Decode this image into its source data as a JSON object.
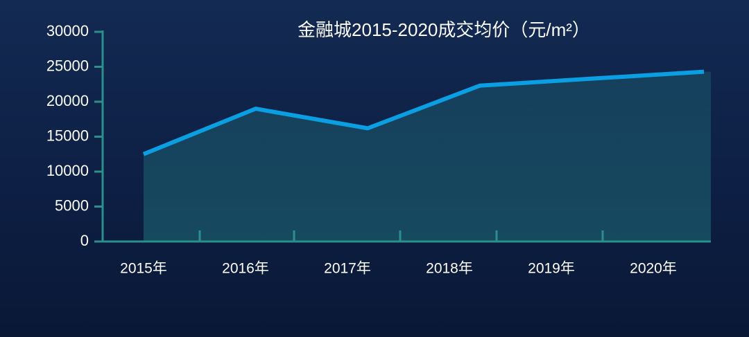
{
  "chart_data": {
    "type": "line",
    "title": "金融城2015-2020成交均价（元/m²）",
    "categories": [
      "2015年",
      "2016年",
      "2017年",
      "2018年",
      "2019年",
      "2020年"
    ],
    "series": [
      {
        "color": "#0a9fe2",
        "values": [
          12500,
          19000,
          16200,
          22300,
          23300,
          24300
        ]
      }
    ],
    "ylim": [
      0,
      30000
    ],
    "yticks": [
      0,
      5000,
      10000,
      15000,
      20000,
      25000,
      30000
    ],
    "grid": false
  }
}
